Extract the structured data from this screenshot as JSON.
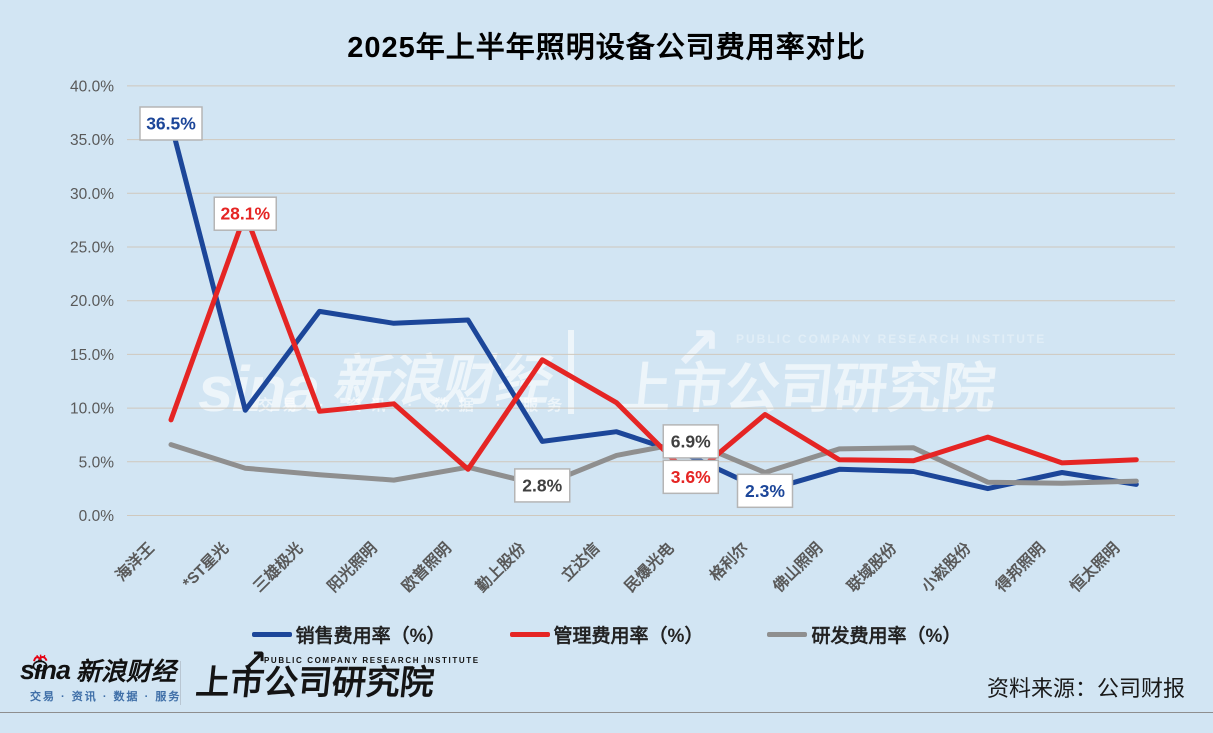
{
  "title": "2025年上半年照明设备公司费用率对比",
  "colors": {
    "background": "#d2e5f3",
    "blue": "#1c4699",
    "red": "#e52524",
    "gray": "#8f8f8f",
    "grid": "#cfc8bd",
    "axis_text": "#595959",
    "callout_border": "#b5b5b5",
    "annotation_dark": "#404040"
  },
  "chart_data": {
    "type": "line",
    "categories": [
      "海洋王",
      "*ST星光",
      "三雄极光",
      "阳光照明",
      "欧普照明",
      "勤上股份",
      "立达信",
      "民爆光电",
      "格利尔",
      "佛山照明",
      "联域股份",
      "小崧股份",
      "得邦照明",
      "恒太照明"
    ],
    "series": [
      {
        "key": "sales-expense-ratio",
        "name": "销售费用率（%）",
        "color": "#1c4699",
        "values": [
          36.5,
          9.8,
          19.0,
          17.9,
          18.2,
          6.9,
          7.8,
          5.5,
          2.3,
          4.3,
          4.1,
          2.5,
          4.0,
          2.9
        ]
      },
      {
        "key": "admin-expense-ratio",
        "name": "管理费用率（%）",
        "color": "#e52524",
        "values": [
          8.9,
          28.1,
          9.7,
          10.4,
          4.3,
          14.5,
          10.5,
          3.6,
          9.4,
          5.2,
          5.1,
          7.3,
          4.9,
          5.2
        ]
      },
      {
        "key": "rnd-expense-ratio",
        "name": "研发费用率（%）",
        "color": "#8f8f8f",
        "values": [
          6.6,
          4.4,
          3.8,
          3.3,
          4.5,
          2.8,
          5.6,
          6.9,
          4.0,
          6.2,
          6.3,
          3.1,
          3.0,
          3.2
        ]
      }
    ],
    "ylim": [
      0,
      40
    ],
    "ytick_step": 5,
    "ytick_labels": [
      "0.0%",
      "5.0%",
      "10.0%",
      "15.0%",
      "20.0%",
      "25.0%",
      "30.0%",
      "35.0%",
      "40.0%"
    ],
    "grid": true,
    "legend_position": "bottom",
    "annotations": [
      {
        "series_index": 0,
        "point_index": 0,
        "text": "36.5%",
        "color": "#1c4699"
      },
      {
        "series_index": 1,
        "point_index": 1,
        "text": "28.1%",
        "color": "#e52524"
      },
      {
        "series_index": 2,
        "point_index": 5,
        "text": "2.8%",
        "color": "#404040"
      },
      {
        "series_index": 2,
        "point_index": 7,
        "text": "6.9%",
        "color": "#404040"
      },
      {
        "series_index": 1,
        "point_index": 7,
        "text": "3.6%",
        "color": "#e52524"
      },
      {
        "series_index": 0,
        "point_index": 8,
        "text": "2.3%",
        "color": "#1c4699"
      }
    ]
  },
  "watermark": {
    "sina": "sina",
    "brand": "新浪财经",
    "tagline": "交易 · 资讯 · 数据 · 服务",
    "arrow": "↗",
    "institute_en": "PUBLIC COMPANY RESEARCH INSTITUTE",
    "institute_cn": "上市公司研究院"
  },
  "footer": {
    "sina_word": "sina",
    "sina_brand": "新浪财经",
    "sina_tagline": "交易 · 资讯 · 数据 · 服务",
    "institute_en": "PUBLIC COMPANY RESEARCH INSTITUTE",
    "institute_cn": "上市公司研究院",
    "institute_arrow": "↗",
    "source": "资料来源：公司财报"
  }
}
